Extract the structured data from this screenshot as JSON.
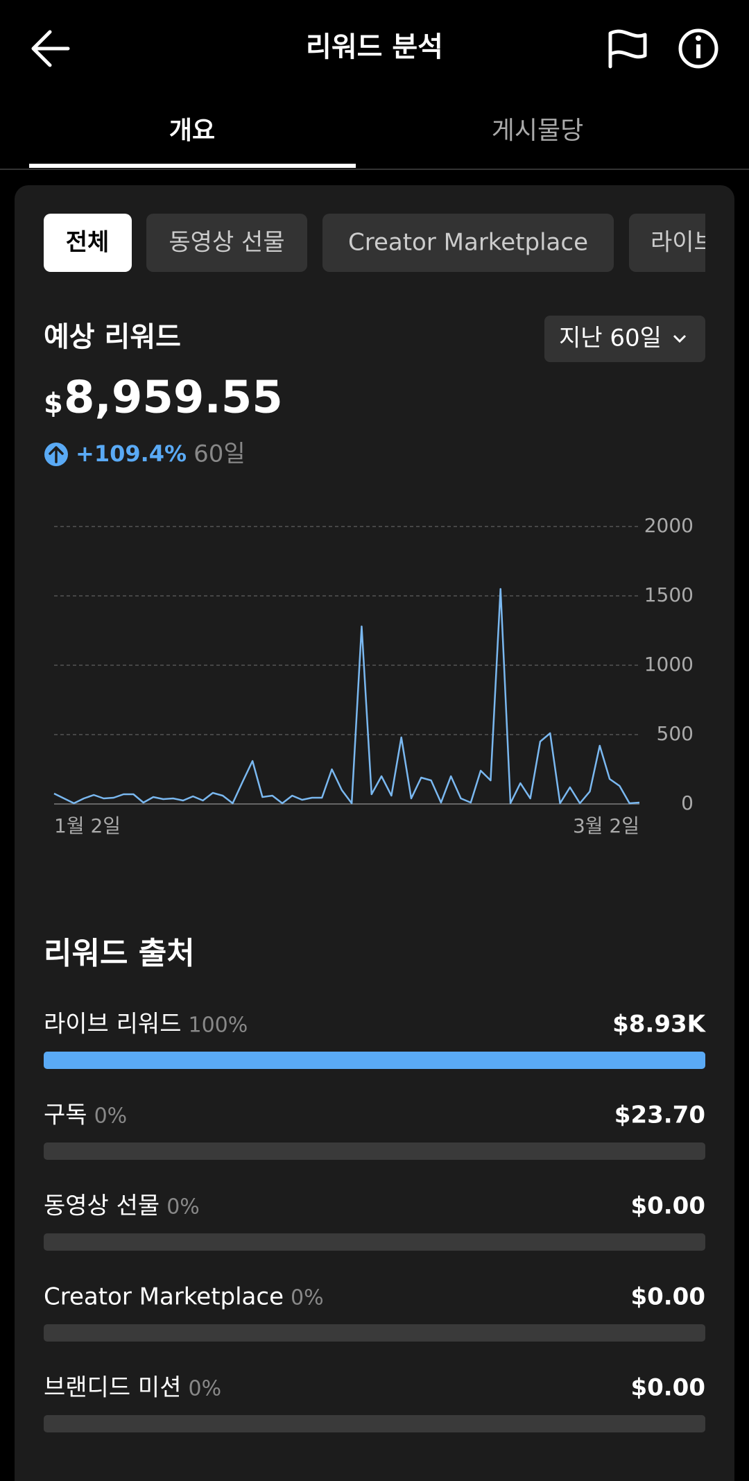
{
  "header": {
    "title": "리워드 분석"
  },
  "tabs": [
    "개요",
    "게시물당"
  ],
  "filters": [
    "전체",
    "동영상 선물",
    "Creator Marketplace",
    "라이브"
  ],
  "summary": {
    "label": "예상 리워드",
    "period": "지난 60일",
    "currency": "$",
    "amount": "8,959.55",
    "change": "+109.4%",
    "change_period": "60일"
  },
  "chart_data": {
    "type": "line",
    "categories": [
      "1월 2일",
      null,
      null,
      null,
      null,
      null,
      null,
      null,
      null,
      null,
      null,
      null,
      null,
      null,
      null,
      null,
      null,
      null,
      null,
      null,
      null,
      null,
      null,
      null,
      null,
      null,
      null,
      null,
      null,
      null,
      null,
      null,
      null,
      null,
      null,
      null,
      null,
      null,
      null,
      null,
      null,
      null,
      null,
      null,
      null,
      null,
      null,
      null,
      null,
      null,
      null,
      null,
      null,
      null,
      null,
      null,
      null,
      null,
      null,
      "3월 2일"
    ],
    "values": [
      75,
      40,
      5,
      40,
      65,
      40,
      45,
      70,
      70,
      10,
      50,
      35,
      40,
      25,
      55,
      25,
      80,
      60,
      5,
      160,
      310,
      50,
      60,
      5,
      60,
      30,
      45,
      45,
      250,
      100,
      5,
      1280,
      70,
      200,
      60,
      480,
      40,
      190,
      170,
      10,
      200,
      40,
      10,
      240,
      170,
      1550,
      5,
      150,
      40,
      450,
      510,
      5,
      120,
      5,
      90,
      420,
      180,
      130,
      5,
      10
    ],
    "color": "#7ab8f0",
    "ylim": [
      0,
      2000
    ],
    "yticks": [
      0,
      500,
      1000,
      1500,
      2000
    ],
    "grid": true
  },
  "sources": {
    "title": "리워드 출처",
    "color": "#5aaaf5",
    "items": [
      {
        "name": "라이브 리워드",
        "share": 100,
        "share_label": "100%",
        "amount": "$8.93K"
      },
      {
        "name": "구독",
        "share": 0,
        "share_label": "0%",
        "amount": "$23.70"
      },
      {
        "name": "동영상 선물",
        "share": 0,
        "share_label": "0%",
        "amount": "$0.00"
      },
      {
        "name": "Creator Marketplace",
        "share": 0,
        "share_label": "0%",
        "amount": "$0.00"
      },
      {
        "name": "브랜디드 미션",
        "share": 0,
        "share_label": "0%",
        "amount": "$0.00"
      }
    ]
  }
}
